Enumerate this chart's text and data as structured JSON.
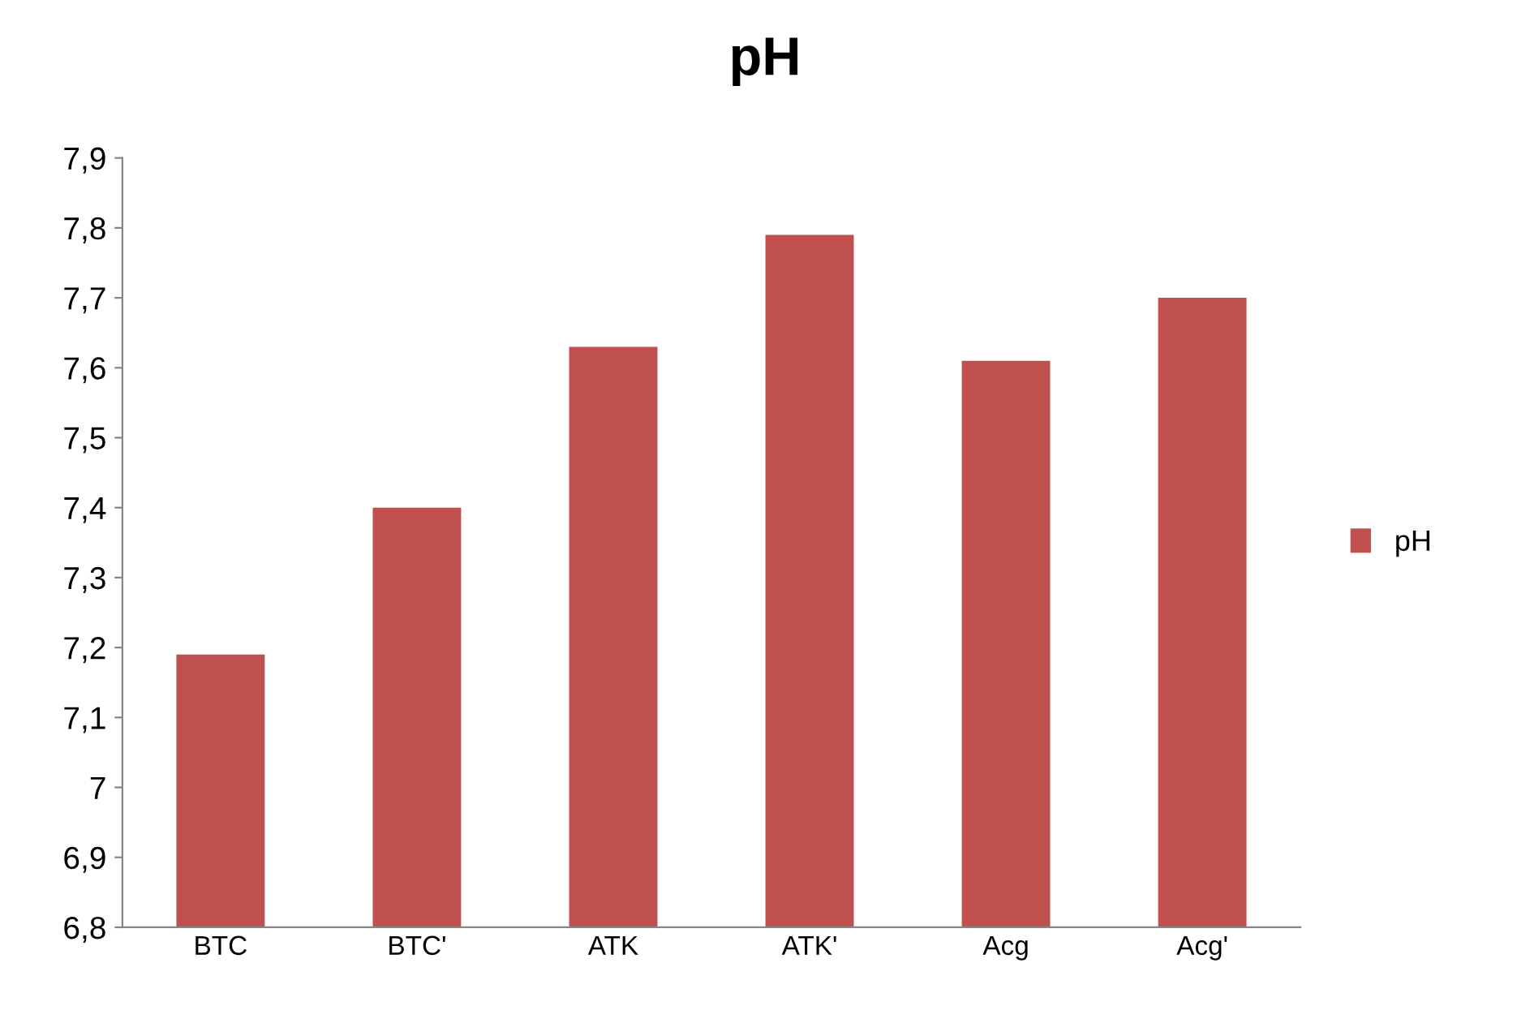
{
  "chart_data": {
    "type": "bar",
    "title": "pH",
    "categories": [
      "BTC",
      "BTC'",
      "ATK",
      "ATK'",
      "Acg",
      "Acg'"
    ],
    "series": [
      {
        "name": "pH",
        "color": "#c0504d",
        "values": [
          7.19,
          7.4,
          7.63,
          7.79,
          7.61,
          7.7
        ]
      }
    ],
    "ylim": [
      6.8,
      7.9
    ],
    "yticks": [
      {
        "value": 6.8,
        "label": "6,8"
      },
      {
        "value": 6.9,
        "label": "6,9"
      },
      {
        "value": 7,
        "label": "7"
      },
      {
        "value": 7.1,
        "label": "7,1"
      },
      {
        "value": 7.2,
        "label": "7,2"
      },
      {
        "value": 7.3,
        "label": "7,3"
      },
      {
        "value": 7.4,
        "label": "7,4"
      },
      {
        "value": 7.5,
        "label": "7,5"
      },
      {
        "value": 7.6,
        "label": "7,6"
      },
      {
        "value": 7.7,
        "label": "7,7"
      },
      {
        "value": 7.8,
        "label": "7,8"
      },
      {
        "value": 7.9,
        "label": "7,9"
      }
    ],
    "grid": false,
    "legend": "right"
  }
}
